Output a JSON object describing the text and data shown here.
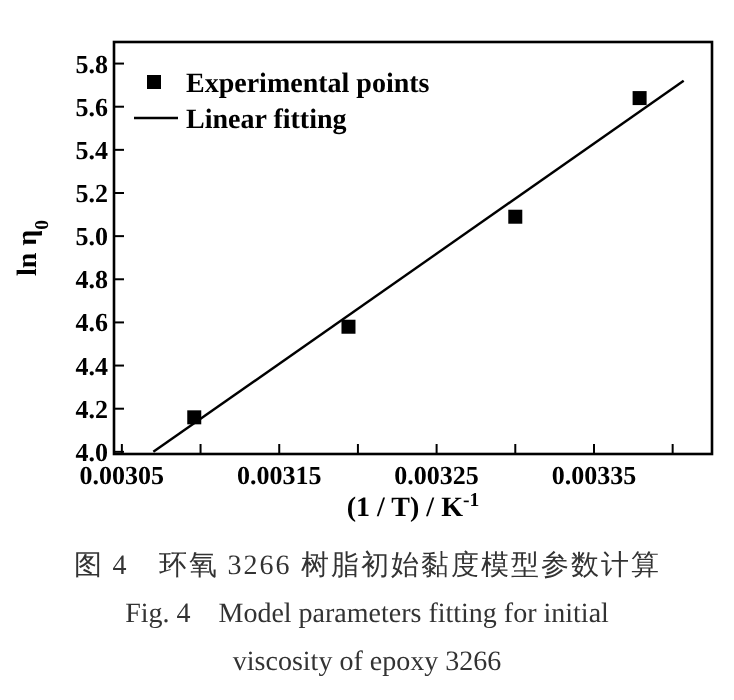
{
  "chart_data": {
    "type": "scatter",
    "xlabel": "(1 / T) / K$^{-1}$",
    "ylabel": "ln η$_{0}$",
    "xlim": [
      0.003045,
      0.003425
    ],
    "ylim": [
      3.99,
      5.9
    ],
    "xticks": [
      0.00305,
      {
        "value": 0.0031,
        "label": null
      },
      0.00315,
      {
        "value": 0.0032,
        "label": null
      },
      0.00325,
      {
        "value": 0.0033,
        "label": null
      },
      0.00335,
      {
        "value": 0.0034,
        "label": null
      }
    ],
    "yticks": [
      {
        "value": 4,
        "label": "4.0"
      },
      4.2,
      4.4,
      4.6,
      4.8,
      {
        "value": 5,
        "label": "5.0"
      },
      5.2,
      5.4,
      5.6,
      5.8
    ],
    "legend": "top left",
    "grid": false,
    "series": [
      {
        "name": "Experimental points",
        "type": "scatter",
        "marker": "square",
        "color": "#000000",
        "x": [
          0.003096,
          0.003194,
          0.0033,
          0.003379
        ],
        "values": [
          4.16,
          4.58,
          5.09,
          5.64
        ]
      },
      {
        "name": "Linear fitting",
        "type": "line",
        "marker": "none",
        "line_style": "solid",
        "color": "#000000",
        "x": [
          0.00307,
          0.003407
        ],
        "values": [
          4.0,
          5.72
        ]
      }
    ],
    "annotations": [
      "图 4　环氧 3266 树脂初始黏度模型参数计算",
      "Fig. 4　Model parameters fitting for initial viscosity of epoxy 3266"
    ]
  }
}
